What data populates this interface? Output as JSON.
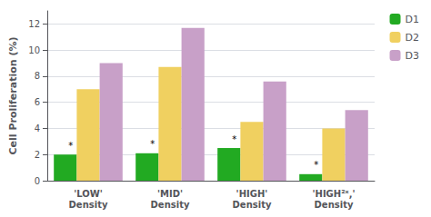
{
  "chart_data": {
    "type": "bar",
    "categories": [
      "'LOW'\nDensity",
      "'MID'\nDensity",
      "'HIGH'\nDensity",
      "'HIGH²ˣ,'\nDensity"
    ],
    "series": [
      {
        "name": "D1",
        "color": "#22aa22",
        "values": [
          2.0,
          2.1,
          2.5,
          0.5
        ]
      },
      {
        "name": "D2",
        "color": "#f0d060",
        "values": [
          7.0,
          8.7,
          4.5,
          4.0
        ]
      },
      {
        "name": "D3",
        "color": "#c8a0c8",
        "values": [
          9.0,
          11.7,
          7.6,
          5.4
        ]
      }
    ],
    "annotations": [
      {
        "text": "*",
        "series": "D1",
        "category": "'LOW'\nDensity"
      },
      {
        "text": "*",
        "series": "D1",
        "category": "'MID'\nDensity"
      },
      {
        "text": "*",
        "series": "D1",
        "category": "'HIGH'\nDensity"
      },
      {
        "text": "*",
        "series": "D1",
        "category": "'HIGH²ˣ,'\nDensity"
      }
    ],
    "ylabel": "Cell Proliferation (%)",
    "ylim": [
      0,
      13
    ],
    "yticks": [
      0,
      2,
      4,
      6,
      8,
      10,
      12
    ],
    "grid": true,
    "legend": "upper right"
  }
}
